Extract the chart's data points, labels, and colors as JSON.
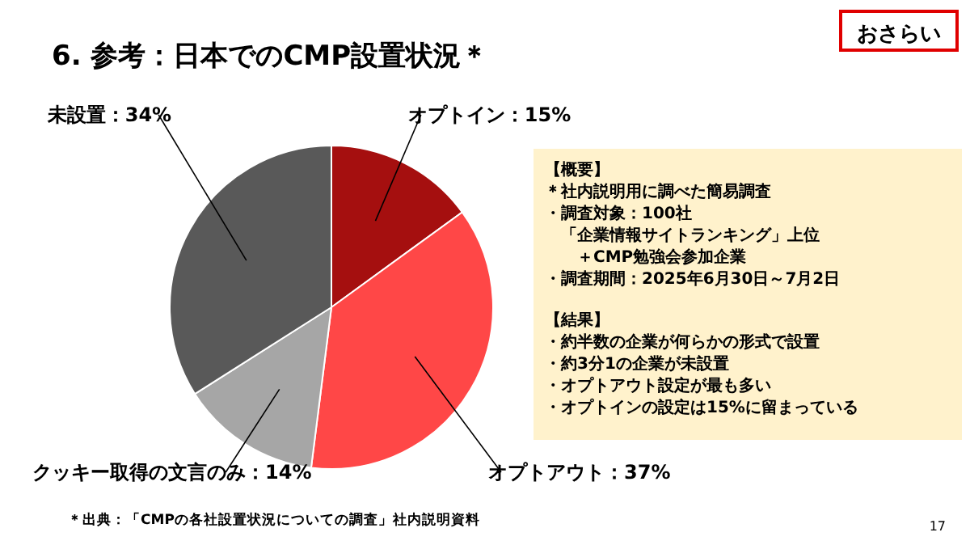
{
  "chart_data": {
    "type": "pie",
    "title": "6.  参考：日本でのCMP設置状況＊",
    "categories": [
      "オプトイン",
      "オプトアウト",
      "クッキー取得の文言のみ",
      "未設置"
    ],
    "values": [
      15,
      37,
      14,
      34
    ],
    "colors": [
      "#a50f0f",
      "#ff4747",
      "#a6a6a6",
      "#595959"
    ],
    "value_labels": [
      "15%",
      "37%",
      "14%",
      "34%"
    ],
    "annotations": [
      "おさらい",
      "【概要】",
      "＊社内説明用に調べた簡易調査",
      "・調査対象：100社",
      "　「企業情報サイトランキング」上位",
      "　　＋CMP勉強会参加企業",
      "・調査期間：2025年6月30日～7月2日",
      "【結果】",
      "・約半数の企業が何らかの形式で設置",
      "・約3分1の企業が未設置",
      "・オプトアウト設定が最も多い",
      "・オプトインの設定は15%に留まっている",
      "＊出典：「CMPの各社設置状況についての調査」社内説明資料",
      "17"
    ]
  }
}
